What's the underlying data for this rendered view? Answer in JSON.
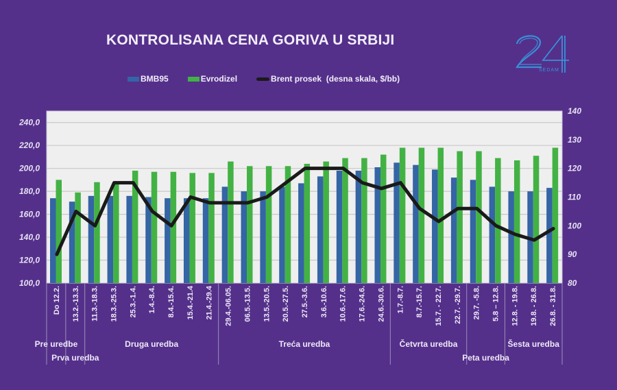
{
  "title": "KONTROLISANA CENA GORIVA U SRBIJI",
  "logo": {
    "text": "24",
    "subtext": "SEDAM",
    "color": "#3b8fd6"
  },
  "legend": [
    {
      "label": "BMB95",
      "color": "#3465a4"
    },
    {
      "label": "Evrodizel",
      "color": "#43b244"
    },
    {
      "label": "Brent prosek  (desna skala, $/bb)",
      "color": "#1a1a1a"
    }
  ],
  "chart_data": {
    "type": "bar",
    "title": "KONTROLISANA CENA GORIVA U SRBIJI",
    "categories": [
      "Do 12.2.",
      "13.2.-13.3.",
      "11.3.-18.3.",
      "18.3.-25.3.",
      "25.3.-1.4.",
      "1.4.-8.4.",
      "8.4.-15.4.",
      "15.4.-21.4",
      "21.4.-29.4",
      "29.4.-06.05.",
      "06.5.-13.5.",
      "13.5.-20.5.",
      "20.5.-27.5.",
      "27.5.-3.6.",
      "3.6.-10.6.",
      "10.6.-17.6.",
      "17.6.-24.6.",
      "24.6.-30.6.",
      "1.7.-8.7.",
      "8.7.-15.7.",
      "15.7. - 22.7.",
      "22.7. -29.7.",
      "29.7. -5.8.",
      "5.8 – 12.8.",
      "12.8. - 19.8.",
      "19.8. - 26.8.",
      "26.8. - 31.8."
    ],
    "groups": [
      {
        "label": "Pre uredbe",
        "from": 0,
        "to": 0
      },
      {
        "label": "Prva uredba",
        "from": 1,
        "to": 1
      },
      {
        "label": "Druga uredba",
        "from": 2,
        "to": 8
      },
      {
        "label": "Treća uredba",
        "from": 9,
        "to": 17
      },
      {
        "label": "Četvrta uredba",
        "from": 18,
        "to": 21
      },
      {
        "label": "Peta uredba",
        "from": 22,
        "to": 23
      },
      {
        "label": "Šesta uredba",
        "from": 24,
        "to": 26
      }
    ],
    "series": [
      {
        "name": "BMB95",
        "type": "bar",
        "axis": "left",
        "color": "#3465a4",
        "values": [
          174,
          171,
          176,
          176,
          176,
          175,
          174,
          174,
          174,
          184,
          180,
          180,
          184,
          187,
          193,
          198,
          198,
          201,
          205,
          203,
          199,
          192,
          190,
          184,
          180,
          180,
          183
        ]
      },
      {
        "name": "Evrodizel",
        "type": "bar",
        "axis": "left",
        "color": "#43b244",
        "values": [
          190,
          179,
          188,
          187,
          198,
          197,
          197,
          196,
          196,
          206,
          202,
          202,
          202,
          204,
          206,
          209,
          209,
          212,
          218,
          218,
          218,
          215,
          215,
          209,
          207,
          211,
          218
        ]
      },
      {
        "name": "Brent prosek  (desna skala, $/bb)",
        "type": "line",
        "axis": "right",
        "color": "#1a1a1a",
        "values": [
          90,
          105,
          100,
          115,
          115,
          105,
          100,
          110,
          108,
          108,
          108,
          110,
          115,
          120,
          120,
          120,
          115,
          113,
          115,
          106,
          101.5,
          106,
          106,
          100,
          97,
          95,
          99
        ]
      }
    ],
    "y_left": {
      "range": [
        100,
        250
      ],
      "ticks": [
        "100,0",
        "120,0",
        "140,0",
        "160,0",
        "180,0",
        "200,0",
        "220,0",
        "240,0"
      ]
    },
    "y_right": {
      "range": [
        80,
        140
      ],
      "ticks": [
        "80",
        "90",
        "100",
        "110",
        "120",
        "130",
        "140"
      ]
    },
    "grid": true,
    "legend_position": "top",
    "plot_background": "#efefef",
    "page_background": "#54308b"
  }
}
